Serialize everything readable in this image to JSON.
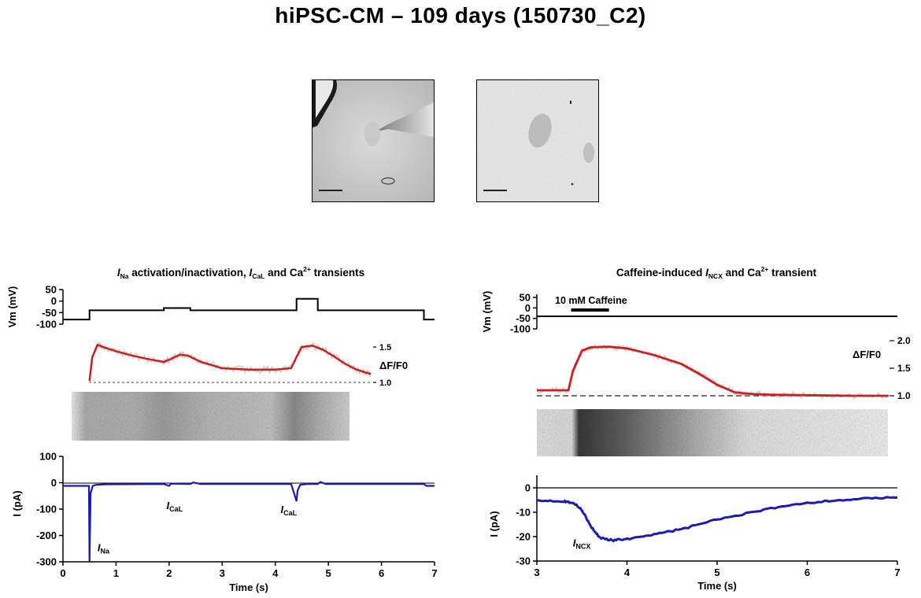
{
  "title": "hiPSC-CM – 109 days (150730_C2)",
  "colors": {
    "fluorescence": "#cc1f1f",
    "fluorescence_raw": "#c8c8c8",
    "current": "#1a1ab5",
    "baseline": "#000000"
  },
  "chart_data": [
    {
      "type": "line",
      "panel": "left",
      "title": {
        "pre": "I",
        "sub": "Na",
        "mid": " activation/inactivation, ",
        "i2": "I",
        "sub2": "CaL",
        "post": " and Ca",
        "sup": "2+",
        "end": " transients"
      },
      "xlabel": "Time (s)",
      "xlim": [
        0,
        7
      ],
      "xticks": [
        0,
        1,
        2,
        3,
        4,
        5,
        6,
        7
      ],
      "voltage": {
        "ylabel": "Vm (mV)",
        "ylim": [
          -100,
          50
        ],
        "yticks": [
          50,
          0,
          -50,
          -100
        ],
        "x": [
          0,
          0.5,
          0.5,
          1.9,
          1.9,
          2.4,
          2.4,
          4.4,
          4.4,
          4.8,
          4.8,
          6.8,
          6.8,
          7
        ],
        "y": [
          -80,
          -80,
          -40,
          -40,
          -30,
          -30,
          -40,
          -40,
          10,
          10,
          -40,
          -40,
          -80,
          -80
        ]
      },
      "fluorescence": {
        "ylabel": "ΔF/F0",
        "yticks": [
          1.5,
          1.0
        ],
        "baseline": 1.0,
        "x": [
          0.5,
          0.55,
          0.65,
          0.8,
          1.0,
          1.3,
          1.6,
          1.9,
          2.0,
          2.2,
          2.35,
          2.6,
          3.0,
          3.5,
          4.0,
          4.3,
          4.4,
          4.5,
          4.7,
          4.9,
          5.1,
          5.3,
          5.5,
          5.7,
          5.8
        ],
        "y": [
          1.02,
          1.35,
          1.53,
          1.49,
          1.44,
          1.38,
          1.33,
          1.29,
          1.32,
          1.39,
          1.38,
          1.29,
          1.2,
          1.18,
          1.18,
          1.2,
          1.36,
          1.5,
          1.52,
          1.46,
          1.37,
          1.27,
          1.19,
          1.14,
          1.12
        ]
      },
      "current": {
        "ylabel": "I (pA)",
        "ylim": [
          -300,
          100
        ],
        "yticks": [
          100,
          0,
          -100,
          -200,
          -300
        ],
        "x": [
          0,
          0.49,
          0.5,
          0.52,
          0.56,
          0.62,
          0.8,
          1.9,
          2.0,
          2.03,
          2.1,
          2.4,
          2.45,
          2.6,
          4.3,
          4.4,
          4.42,
          4.47,
          4.6,
          4.8,
          4.85,
          4.95,
          5.5,
          6.8,
          6.85,
          7
        ],
        "y": [
          -12,
          -12,
          -300,
          -40,
          -12,
          -8,
          -6,
          -5,
          -12,
          -4,
          -4,
          -5,
          1,
          -5,
          -5,
          -70,
          -30,
          -8,
          -5,
          -5,
          3,
          -5,
          -5,
          -5,
          -12,
          -12
        ]
      },
      "annotations": [
        {
          "label": "I",
          "sub": "Na",
          "x": 0.65,
          "y": -260
        },
        {
          "label": "I",
          "sub": "CaL",
          "x": 1.95,
          "y": -100
        },
        {
          "label": "I",
          "sub": "CaL",
          "x": 4.1,
          "y": -115
        }
      ]
    },
    {
      "type": "line",
      "panel": "right",
      "title": {
        "pre": "Caffeine-induced ",
        "i": "I",
        "sub": "NCX",
        "post": " and Ca",
        "sup": "2+",
        "end": " transient"
      },
      "xlabel": "Time (s)",
      "xlim": [
        3,
        7
      ],
      "xticks": [
        3,
        4,
        5,
        6,
        7
      ],
      "drug": {
        "label": "10 mM Caffeine",
        "start": 3.38,
        "end": 3.8
      },
      "voltage": {
        "ylabel": "Vm (mV)",
        "ylim": [
          -100,
          50
        ],
        "yticks": [
          50,
          0,
          -50,
          -100
        ],
        "x": [
          3,
          7
        ],
        "y": [
          -40,
          -40
        ]
      },
      "fluorescence": {
        "ylabel": "ΔF/F0",
        "yticks": [
          2.0,
          1.5,
          1.0
        ],
        "baseline": 1.0,
        "x": [
          3.0,
          3.35,
          3.4,
          3.5,
          3.6,
          3.8,
          4.0,
          4.3,
          4.6,
          4.8,
          5.0,
          5.2,
          5.4,
          5.6,
          6.0,
          6.5,
          6.9
        ],
        "y": [
          1.1,
          1.1,
          1.45,
          1.82,
          1.88,
          1.89,
          1.86,
          1.74,
          1.58,
          1.4,
          1.2,
          1.06,
          1.03,
          1.02,
          1.01,
          1.0,
          1.0
        ]
      },
      "current": {
        "ylabel": "I (pA)",
        "ylim": [
          -30,
          0
        ],
        "yticks": [
          0,
          -10,
          -20,
          -30
        ],
        "x": [
          3.0,
          3.3,
          3.4,
          3.5,
          3.6,
          3.7,
          3.85,
          4.0,
          4.3,
          4.6,
          5.0,
          5.4,
          5.8,
          6.2,
          6.6,
          7.0
        ],
        "y": [
          -5,
          -5.5,
          -6,
          -9,
          -16,
          -20.5,
          -21.5,
          -21,
          -19,
          -17,
          -13,
          -10,
          -7,
          -5.5,
          -4.5,
          -4
        ]
      },
      "annotations": [
        {
          "label": "I",
          "sub": "NCX",
          "x": 3.4,
          "y": -24
        }
      ]
    }
  ]
}
